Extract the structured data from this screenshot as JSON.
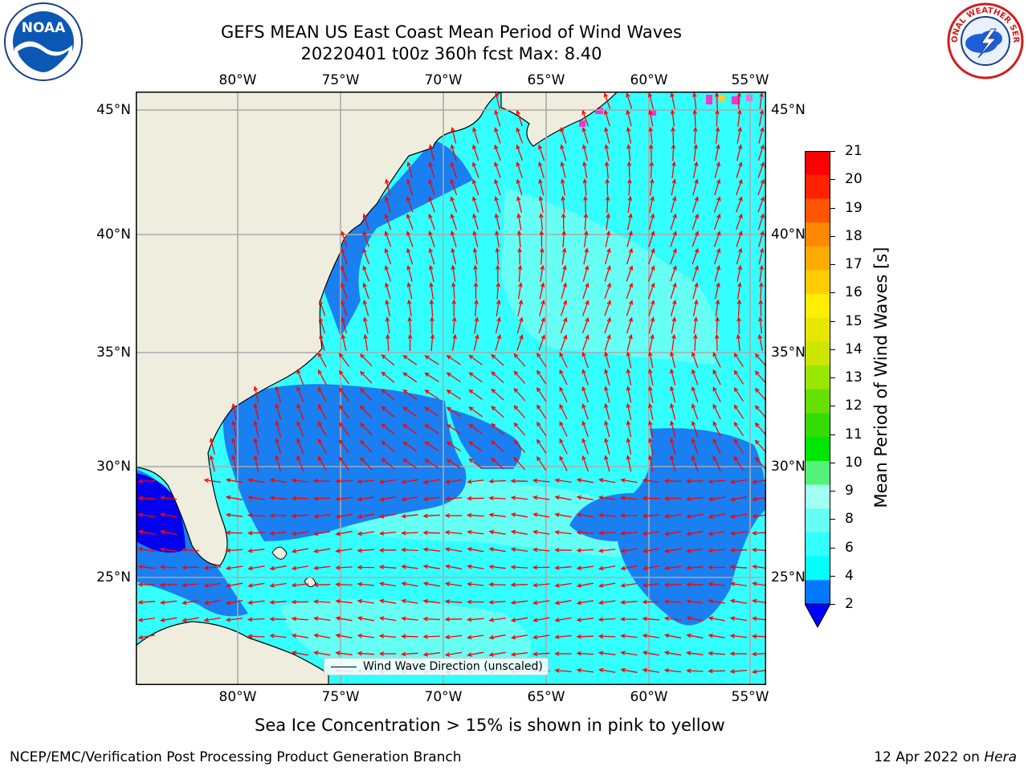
{
  "header": {
    "title_line1": "GEFS MEAN US East Coast Mean Period of Wind Waves",
    "title_line2": "20220401 t00z 360h fcst   Max: 8.40"
  },
  "logos": {
    "left": {
      "name": "noaa-logo",
      "text": "NOAA",
      "ring_text": "NATIONAL OCEANIC AND ATMOSPHERIC ADMINISTRATION • U.S. DEPARTMENT OF COMMERCE"
    },
    "right": {
      "name": "nws-logo",
      "ring_text": "NATIONAL WEATHER SERVICE"
    }
  },
  "map": {
    "projection": "plate carree",
    "lon_range": [
      -85,
      -54.5
    ],
    "lat_range": [
      20.5,
      46
    ],
    "lon_ticks": [
      "80°W",
      "75°W",
      "70°W",
      "65°W",
      "60°W",
      "55°W"
    ],
    "lat_ticks": [
      "45°N",
      "40°N",
      "35°N",
      "30°N",
      "25°N"
    ],
    "grid": true,
    "arrow_color": "#ff0000",
    "ocean_colors": {
      "deep_blue": "#0000ee",
      "blue": "#1a7ff0",
      "cyan": "#00ffff",
      "light_cyan": "#4dfff4"
    },
    "land_color": "#efedde",
    "legend": {
      "label": "Wind Wave Direction (unscaled)",
      "placement": "lower-center"
    }
  },
  "colorbar": {
    "label": "Mean Period of Wind Waves [s]",
    "ticks": [
      "2",
      "4",
      "6",
      "8",
      "9",
      "10",
      "11",
      "12",
      "13",
      "14",
      "15",
      "16",
      "17",
      "18",
      "19",
      "20",
      "21"
    ],
    "colors": [
      "#0077ff",
      "#00ffff",
      "#33ffff",
      "#66fff4",
      "#a0fff0",
      "#55f27a",
      "#00e600",
      "#33dd00",
      "#66e000",
      "#99e600",
      "#cce600",
      "#e6e600",
      "#ffee00",
      "#ffcc00",
      "#ffaa00",
      "#ff8800",
      "#ff5500",
      "#ff2200",
      "#ff0000"
    ],
    "under_color": "#0000ff"
  },
  "notes": {
    "ice": "Sea Ice Concentration > 15% is shown in pink to yellow"
  },
  "footer": {
    "left": "NCEP/EMC/Verification Post Processing Product Generation Branch",
    "date": "12 Apr 2022 on ",
    "machine": "Hera"
  }
}
